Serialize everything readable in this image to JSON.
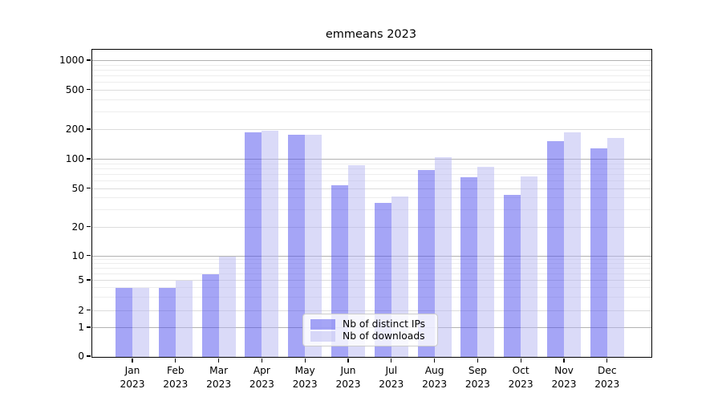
{
  "chart_data": {
    "type": "bar",
    "title": "emmeans 2023",
    "categories": [
      "Jan",
      "Feb",
      "Mar",
      "Apr",
      "May",
      "Jun",
      "Jul",
      "Aug",
      "Sep",
      "Oct",
      "Nov",
      "Dec"
    ],
    "category_year": "2023",
    "series": [
      {
        "name": "Nb of distinct IPs",
        "color": "rgba(75,75,237,0.5)",
        "values": [
          4,
          4,
          6,
          190,
          180,
          54,
          36,
          78,
          66,
          43,
          155,
          130
        ]
      },
      {
        "name": "Nb of downloads",
        "color": "rgba(181,181,241,0.5)",
        "values": [
          4,
          5,
          10,
          195,
          178,
          88,
          42,
          105,
          85,
          67,
          190,
          165
        ]
      }
    ],
    "yscale": "log-like with linear zero baseline",
    "ytick_labels": [
      0,
      1,
      2,
      5,
      10,
      20,
      50,
      100,
      200,
      500,
      1000
    ],
    "ylim": [
      0,
      1200
    ],
    "grid": "on",
    "legend_position": "lower-center",
    "colors": {
      "grid_major": "#b2b2b2",
      "grid_labeled": "#dcdcdc",
      "grid_minor": "#ededed",
      "axis": "#000000"
    }
  }
}
